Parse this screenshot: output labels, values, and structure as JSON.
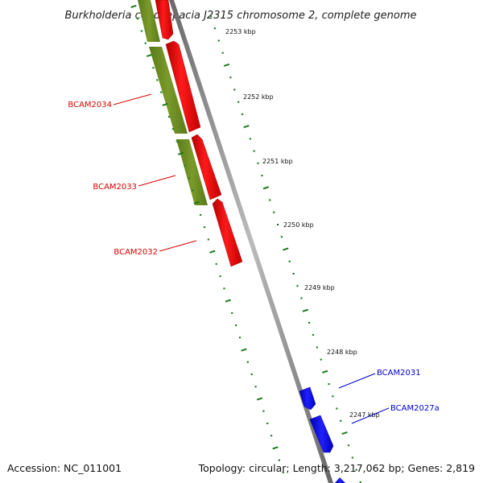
{
  "title": "Burkholderia cenocepacia J2315 chromosome 2, complete genome",
  "footer": {
    "accession": "Accession: NC_011001",
    "summary": "Topology: circular; Length: 3,217,062 bp; Genes: 2,819"
  },
  "scale": {
    "ticks": [
      "2253 kbp",
      "2252 kbp",
      "2251 kbp",
      "2250 kbp",
      "2249 kbp",
      "2248 kbp",
      "2247 kbp"
    ]
  },
  "genes": [
    {
      "name": "BCAM2034",
      "color": "#dd0000"
    },
    {
      "name": "BCAM2033",
      "color": "#dd0000"
    },
    {
      "name": "BCAM2032",
      "color": "#dd0000"
    },
    {
      "name": "BCAM2031",
      "color": "#0000cc"
    },
    {
      "name": "BCAM2027a",
      "color": "#0000cc"
    }
  ],
  "colors": {
    "forward_strand": "#ff0000",
    "reverse_strand": "#0000ff",
    "cds_track": "#6b8e23",
    "backbone": "#888888",
    "tick": "#1a7a1a"
  }
}
